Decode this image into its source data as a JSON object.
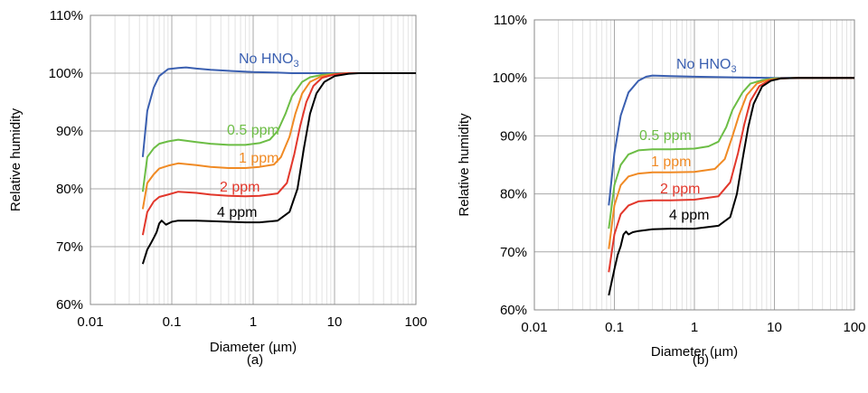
{
  "chart_data": [
    {
      "panel": "(a)",
      "type": "line",
      "xlabel": "Diameter (µm)",
      "ylabel": "Relative humidity",
      "xscale": "log",
      "xlim": [
        0.01,
        100
      ],
      "ylim": [
        60,
        110
      ],
      "xticks": [
        "0.01",
        "0.1",
        "1",
        "10",
        "100"
      ],
      "yticks": [
        "60%",
        "70%",
        "80%",
        "90%",
        "100%",
        "110%"
      ],
      "grid": true,
      "series": [
        {
          "name": "No HNO",
          "sub": "3",
          "color": "#3a5fb0",
          "x": [
            0.044,
            0.05,
            0.06,
            0.07,
            0.09,
            0.12,
            0.15,
            0.2,
            0.3,
            0.5,
            1,
            2,
            3,
            5,
            10,
            20,
            100
          ],
          "y": [
            85.5,
            93.5,
            97.5,
            99.5,
            100.7,
            100.9,
            101.0,
            100.8,
            100.6,
            100.4,
            100.2,
            100.1,
            100.0,
            100.0,
            100.0,
            100.0,
            100.0
          ]
        },
        {
          "name": "0.5 ppm",
          "color": "#6cbd45",
          "x": [
            0.044,
            0.05,
            0.06,
            0.07,
            0.09,
            0.12,
            0.2,
            0.3,
            0.5,
            0.8,
            1.2,
            1.6,
            2.0,
            2.5,
            3.0,
            4.0,
            5.0,
            7.0,
            10,
            15,
            20,
            100
          ],
          "y": [
            79.5,
            85.5,
            87.0,
            87.8,
            88.2,
            88.5,
            88.1,
            87.8,
            87.6,
            87.6,
            87.9,
            88.5,
            90.0,
            93.0,
            96.0,
            98.5,
            99.3,
            99.7,
            99.9,
            100.0,
            100.0,
            100.0
          ]
        },
        {
          "name": "1 ppm",
          "color": "#f08a24",
          "x": [
            0.044,
            0.05,
            0.06,
            0.07,
            0.09,
            0.12,
            0.2,
            0.3,
            0.5,
            0.8,
            1.2,
            1.8,
            2.2,
            2.8,
            3.3,
            4.0,
            5.0,
            7.0,
            10,
            15,
            20,
            100
          ],
          "y": [
            76.5,
            81.0,
            82.5,
            83.5,
            84.0,
            84.4,
            84.1,
            83.8,
            83.6,
            83.6,
            83.8,
            84.2,
            85.5,
            89.0,
            93.0,
            96.5,
            98.5,
            99.5,
            99.8,
            100.0,
            100.0,
            100.0
          ]
        },
        {
          "name": "2 ppm",
          "color": "#e2372b",
          "x": [
            0.044,
            0.05,
            0.06,
            0.07,
            0.09,
            0.12,
            0.2,
            0.3,
            0.5,
            0.8,
            1.2,
            2.0,
            2.6,
            3.2,
            3.8,
            4.5,
            5.5,
            7.0,
            10,
            15,
            20,
            100
          ],
          "y": [
            72.0,
            76.0,
            77.8,
            78.6,
            79.0,
            79.5,
            79.3,
            79.0,
            78.8,
            78.7,
            78.8,
            79.2,
            81.0,
            86.0,
            91.0,
            95.0,
            97.8,
            99.2,
            99.8,
            100.0,
            100.0,
            100.0
          ]
        },
        {
          "name": "4 ppm",
          "color": "#000000",
          "x": [
            0.044,
            0.05,
            0.055,
            0.06,
            0.065,
            0.07,
            0.075,
            0.085,
            0.1,
            0.12,
            0.2,
            0.3,
            0.5,
            0.8,
            1.2,
            2.0,
            2.8,
            3.5,
            4.2,
            5.0,
            6.0,
            7.5,
            10,
            15,
            20,
            100
          ],
          "y": [
            67.0,
            69.5,
            70.5,
            71.5,
            72.5,
            74.0,
            74.5,
            73.8,
            74.3,
            74.5,
            74.5,
            74.4,
            74.3,
            74.2,
            74.2,
            74.5,
            76.0,
            80.0,
            87.0,
            93.0,
            96.5,
            98.5,
            99.5,
            99.9,
            100.0,
            100.0
          ]
        }
      ]
    },
    {
      "panel": "(b)",
      "type": "line",
      "xlabel": "Diameter (µm)",
      "ylabel": "Relative humidity",
      "xscale": "log",
      "xlim": [
        0.01,
        100
      ],
      "ylim": [
        60,
        110
      ],
      "xticks": [
        "0.01",
        "0.1",
        "1",
        "10",
        "100"
      ],
      "yticks": [
        "60%",
        "70%",
        "80%",
        "90%",
        "100%",
        "110%"
      ],
      "grid": true,
      "series": [
        {
          "name": "No HNO",
          "sub": "3",
          "color": "#3a5fb0",
          "x": [
            0.085,
            0.1,
            0.12,
            0.15,
            0.2,
            0.25,
            0.3,
            0.5,
            1,
            3,
            10,
            100
          ],
          "y": [
            78.0,
            87.0,
            93.5,
            97.5,
            99.5,
            100.2,
            100.4,
            100.3,
            100.2,
            100.1,
            100.0,
            100.0
          ]
        },
        {
          "name": "0.5 ppm",
          "color": "#6cbd45",
          "x": [
            0.085,
            0.1,
            0.12,
            0.15,
            0.2,
            0.3,
            0.5,
            1.0,
            1.5,
            2.0,
            2.5,
            3.0,
            4.0,
            5.0,
            7.0,
            10,
            20,
            100
          ],
          "y": [
            74.0,
            81.5,
            85.0,
            86.8,
            87.5,
            87.7,
            87.7,
            87.8,
            88.2,
            89.0,
            91.5,
            94.5,
            97.5,
            99.0,
            99.6,
            99.9,
            100.0,
            100.0
          ]
        },
        {
          "name": "1 ppm",
          "color": "#f08a24",
          "x": [
            0.085,
            0.1,
            0.12,
            0.15,
            0.2,
            0.3,
            0.5,
            1.0,
            1.8,
            2.4,
            3.0,
            3.6,
            4.5,
            6.0,
            8.0,
            12,
            20,
            100
          ],
          "y": [
            70.5,
            78.0,
            81.5,
            83.0,
            83.5,
            83.7,
            83.7,
            83.8,
            84.3,
            86.0,
            90.0,
            93.5,
            97.0,
            99.0,
            99.6,
            99.9,
            100.0,
            100.0
          ]
        },
        {
          "name": "2 ppm",
          "color": "#e2372b",
          "x": [
            0.085,
            0.1,
            0.12,
            0.15,
            0.2,
            0.3,
            0.5,
            1.0,
            2.0,
            2.8,
            3.5,
            4.2,
            5.0,
            6.5,
            8.5,
            12,
            20,
            100
          ],
          "y": [
            66.5,
            73.0,
            76.5,
            78.0,
            78.7,
            78.9,
            78.9,
            79.0,
            79.6,
            82.0,
            87.0,
            92.0,
            96.0,
            98.6,
            99.5,
            99.9,
            100.0,
            100.0
          ]
        },
        {
          "name": "4 ppm",
          "color": "#000000",
          "x": [
            0.085,
            0.1,
            0.11,
            0.12,
            0.13,
            0.14,
            0.15,
            0.17,
            0.2,
            0.3,
            0.5,
            1.0,
            2.0,
            2.8,
            3.4,
            4.0,
            4.7,
            5.5,
            7.0,
            9.0,
            12,
            20,
            100
          ],
          "y": [
            62.5,
            67.0,
            69.5,
            71.0,
            73.0,
            73.5,
            73.0,
            73.4,
            73.6,
            73.9,
            74.0,
            74.0,
            74.5,
            76.0,
            80.0,
            86.0,
            91.5,
            95.5,
            98.5,
            99.5,
            99.9,
            100.0,
            100.0
          ]
        }
      ]
    }
  ]
}
